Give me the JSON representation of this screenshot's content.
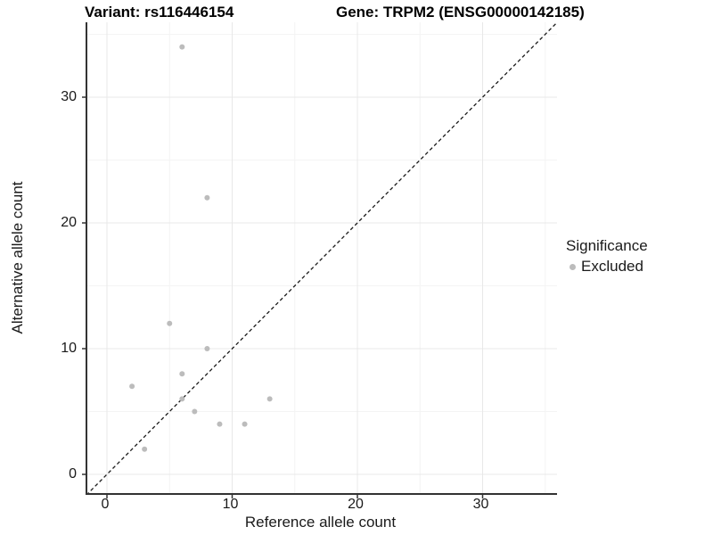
{
  "colors": {
    "point": "#bcbcbc",
    "grid_major": "#e8e8e8",
    "grid_minor": "#f4f4f4",
    "axis_line": "#333333",
    "text": "#1a1a1a",
    "identity_line": "#1a1a1a"
  },
  "chart_data": {
    "type": "scatter",
    "title_left": "Variant: rs116446154",
    "title_right": "Gene: TRPM2 (ENSG00000142185)",
    "xlabel": "Reference allele count",
    "ylabel": "Alternative allele count",
    "xlim": [
      -2,
      36
    ],
    "ylim": [
      -2,
      36
    ],
    "x_ticks": [
      0,
      10,
      20,
      30
    ],
    "y_ticks": [
      0,
      10,
      20,
      30
    ],
    "x_minor_ticks": [
      5,
      15,
      25,
      35
    ],
    "y_minor_ticks": [
      5,
      15,
      25,
      35
    ],
    "grid": "major+minor on white panel",
    "identity_line": {
      "style": "dashed",
      "slope": 1,
      "intercept": 0
    },
    "series": [
      {
        "name": "Excluded",
        "color": "#bcbcbc",
        "points": [
          [
            2,
            7
          ],
          [
            3,
            2
          ],
          [
            5,
            12
          ],
          [
            6,
            6
          ],
          [
            6,
            8
          ],
          [
            6,
            34
          ],
          [
            7,
            5
          ],
          [
            8,
            10
          ],
          [
            8,
            22
          ],
          [
            9,
            4
          ],
          [
            11,
            4
          ],
          [
            13,
            6
          ]
        ]
      }
    ],
    "legend": {
      "title": "Significance",
      "position": "right",
      "items": [
        {
          "label": "Excluded",
          "color": "#bcbcbc"
        }
      ]
    }
  }
}
